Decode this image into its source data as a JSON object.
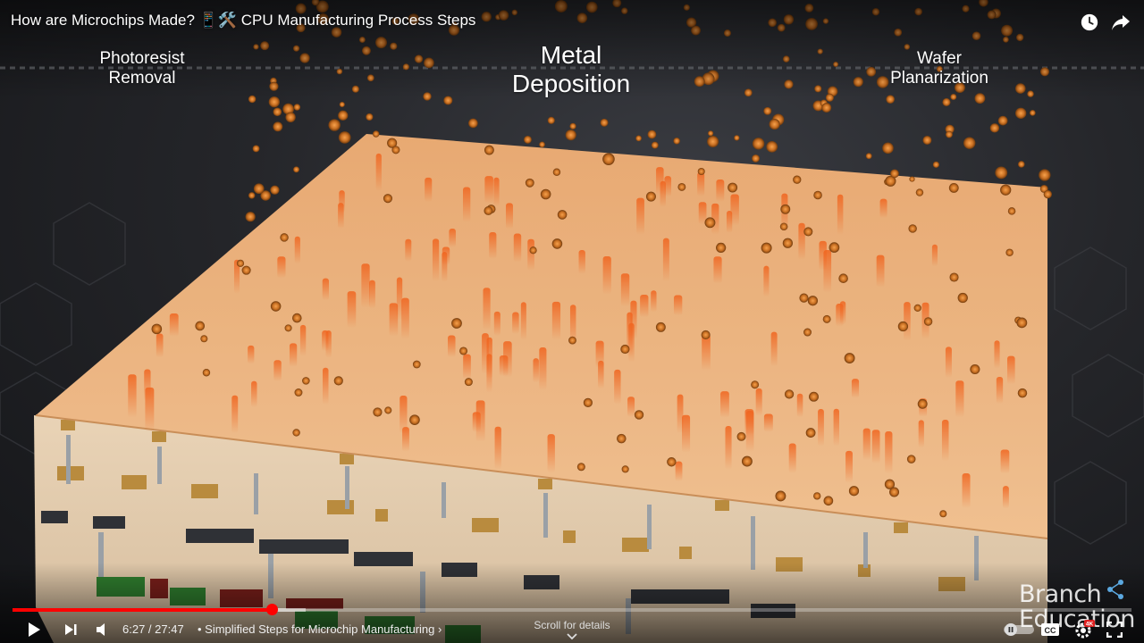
{
  "video": {
    "title": "How are Microchips Made? 📱🛠️ CPU Manufacturing Process Steps"
  },
  "steps": {
    "previous": {
      "line1": "Photoresist",
      "line2": "Removal",
      "color": "#4f9a4c"
    },
    "current": {
      "line1": "Metal",
      "line2": "Deposition",
      "color": "#3d6fb0"
    },
    "next": {
      "line1": "Wafer",
      "line2": "Planarization",
      "color": "#d45a45"
    }
  },
  "player": {
    "current_time": "6:27",
    "duration": "27:47",
    "time_display": "6:27 / 27:47",
    "chapter_prefix": " • ",
    "chapter": "Simplified Steps for Microchip Manufacturing",
    "chapter_chevron": "›",
    "scroll_hint": "Scroll for details",
    "played_fraction": 0.232,
    "loaded_fraction": 0.262,
    "accent": "#ff0000",
    "icons": [
      "play-icon",
      "next-icon",
      "volume-icon",
      "autoplay-toggle-icon",
      "captions-icon",
      "settings-icon",
      "fullscreen-icon",
      "watch-later-icon",
      "share-icon"
    ],
    "settings_badge": "4K"
  },
  "watermark": {
    "line1": "Branch",
    "line2": "Education"
  }
}
